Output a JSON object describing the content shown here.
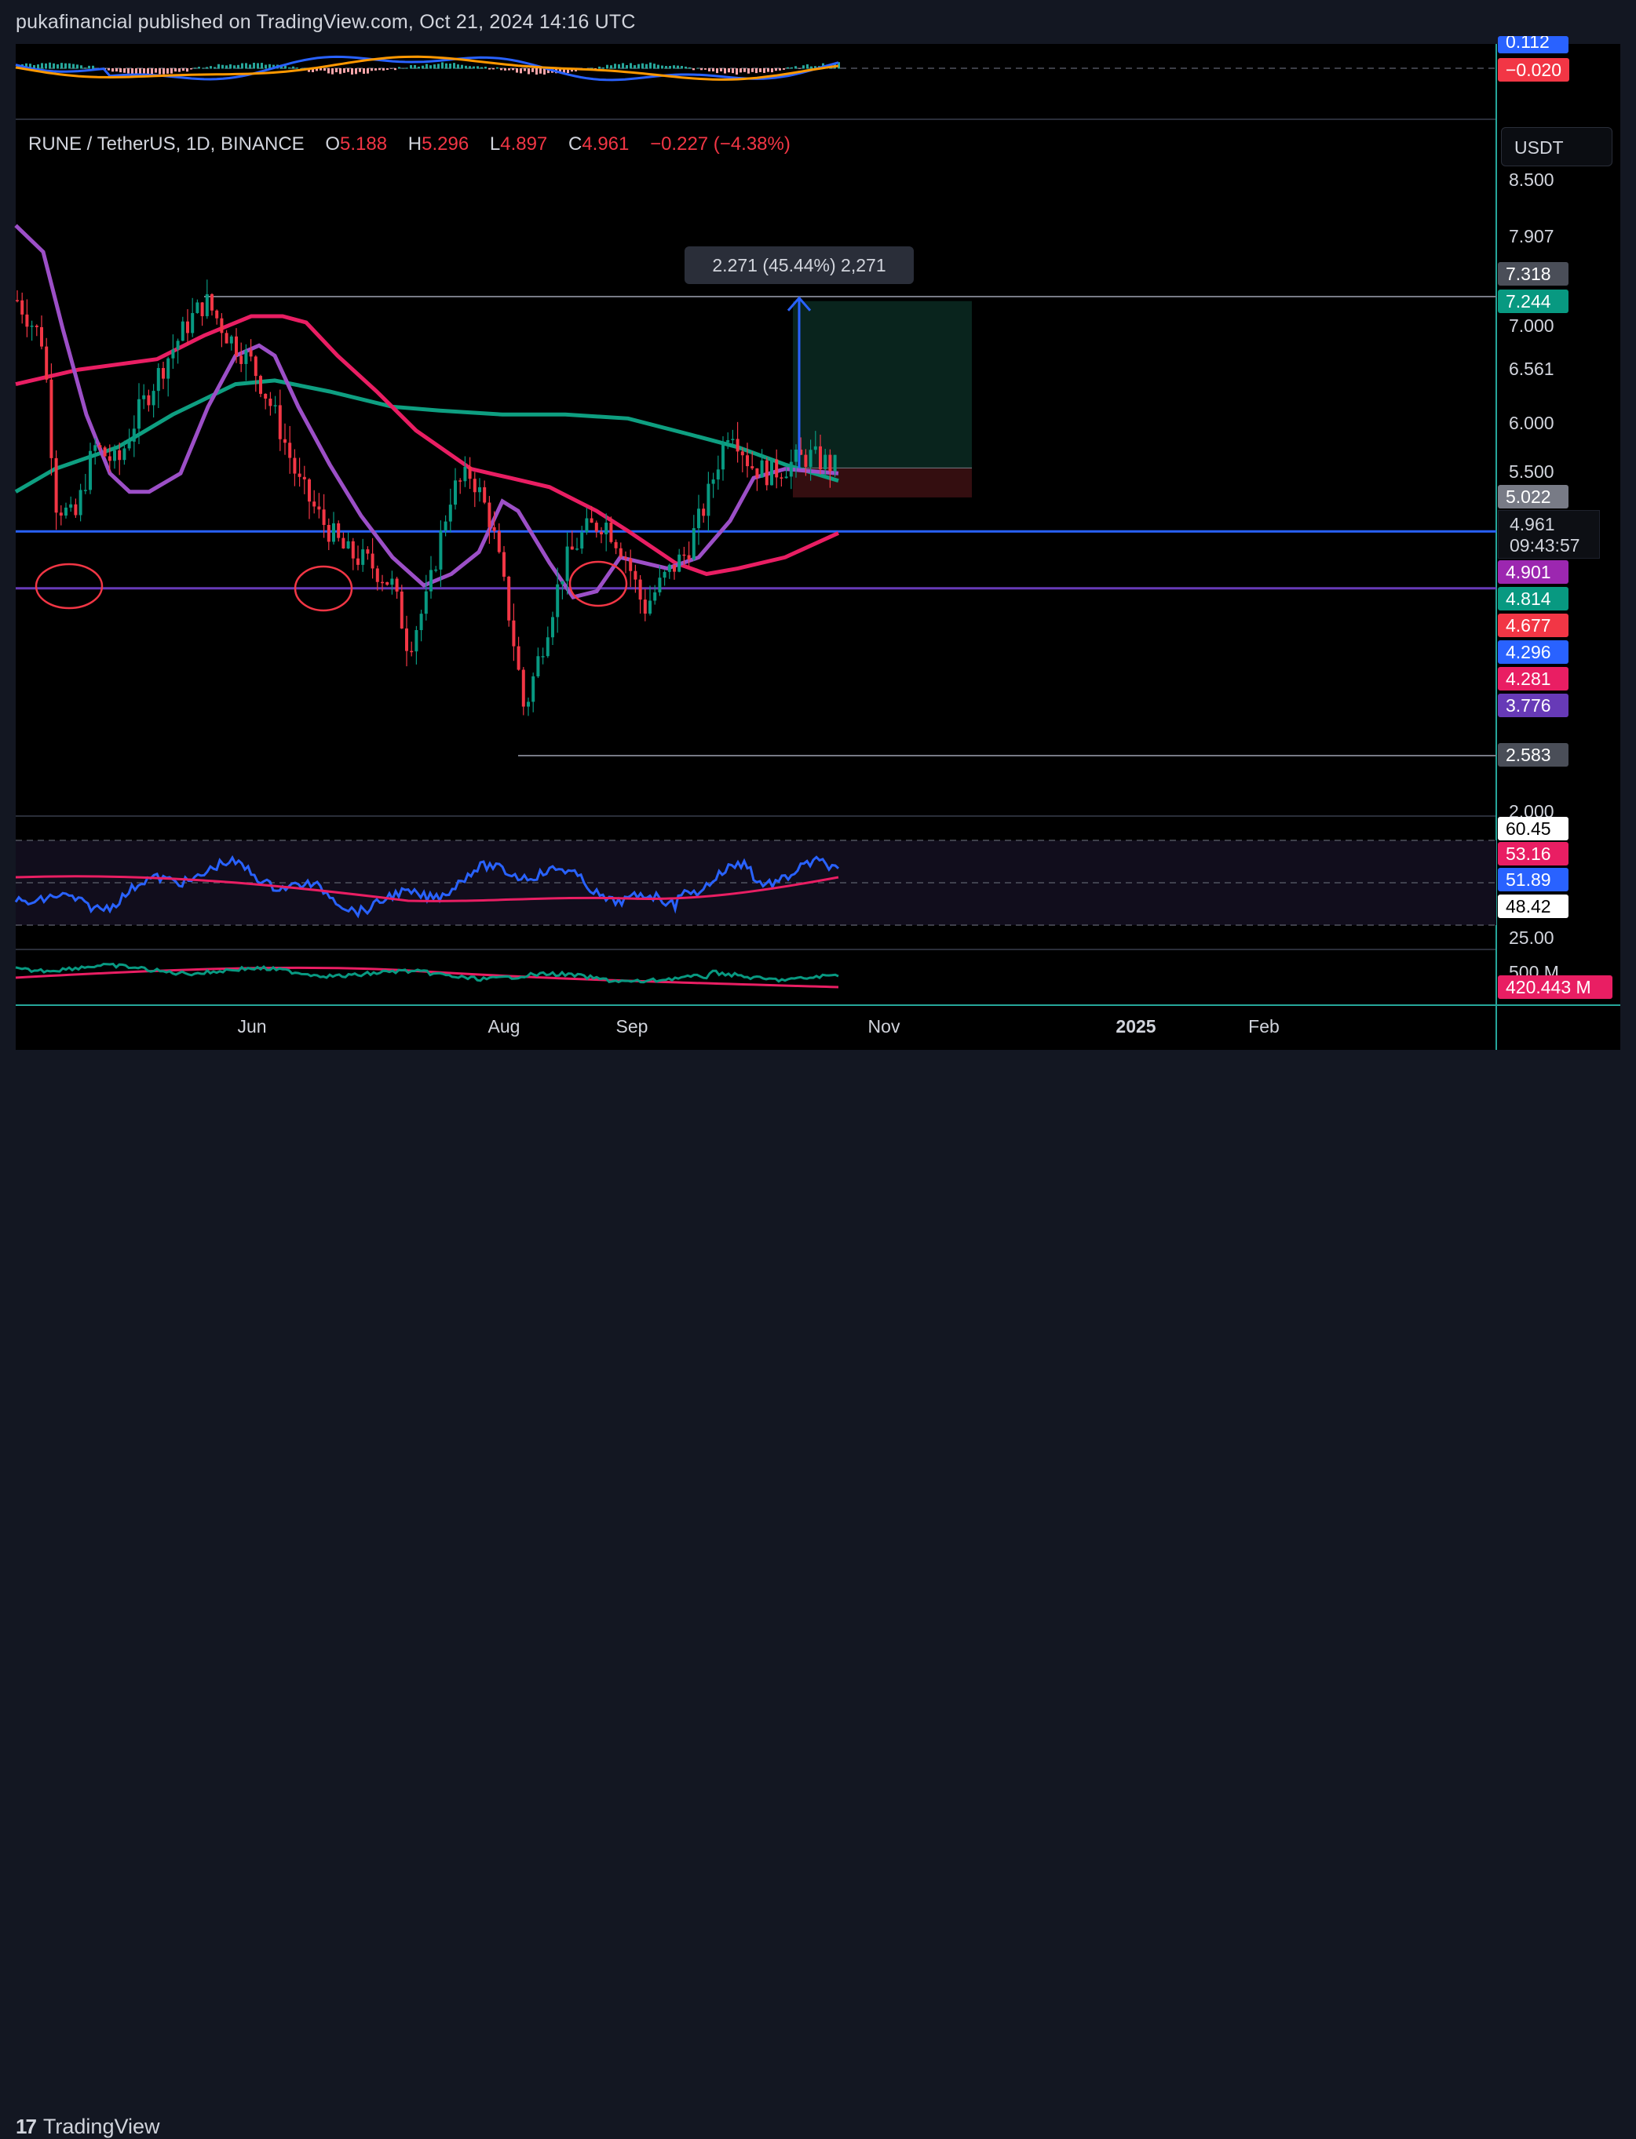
{
  "header": {
    "publisher_line": "pukafinancial published on TradingView.com, Oct 21, 2024 14:16 UTC"
  },
  "footer": {
    "brand": "TradingView",
    "brand_mark": "17"
  },
  "legend": {
    "symbol": "RUNE / TetherUS, 1D, BINANCE",
    "o_label": "O",
    "o_value": "5.188",
    "h_label": "H",
    "h_value": "5.296",
    "l_label": "L",
    "l_value": "4.897",
    "c_label": "C",
    "c_value": "4.961",
    "change": "−0.227 (−4.38%)"
  },
  "currency_button": "USDT",
  "measure_tooltip": "2.271 (45.44%) 2,271",
  "countdown": {
    "price": "4.961",
    "time": "09:43:57"
  },
  "colors": {
    "background": "#000000",
    "candle_up": "#089981",
    "candle_down": "#f23645",
    "ma_purple": "#9c4fc7",
    "ma_red": "#e91e63",
    "ma_green": "#0e9f81",
    "support_blue": "#2962ff",
    "support_purple": "#673ab7",
    "rsi_line": "#2962ff",
    "rsi_ma": "#e91e63",
    "macd_line": "#2962ff",
    "signal_line": "#ff9800"
  },
  "chart_data": [
    {
      "type": "candlestick",
      "symbol": "RUNE / TetherUS",
      "interval": "1D",
      "exchange": "BINANCE",
      "x_ticks": [
        "Jun",
        "Aug",
        "Sep",
        "Nov",
        "2025",
        "Feb"
      ],
      "y_ticks": [
        "8.500",
        "7.907",
        "7.000",
        "6.561",
        "6.000",
        "5.500",
        "2.000"
      ],
      "y_scale": "log",
      "last_ohlc": {
        "open": 5.188,
        "high": 5.296,
        "low": 4.897,
        "close": 4.961,
        "change": -0.227,
        "change_pct": -4.38
      },
      "price_tags": [
        {
          "value": "7.318",
          "color": "#4a4e58"
        },
        {
          "value": "7.244",
          "color": "#089981"
        },
        {
          "value": "5.022",
          "color": "#787b86"
        },
        {
          "value": "4.901",
          "color": "#9c27b0"
        },
        {
          "value": "4.814",
          "color": "#089981"
        },
        {
          "value": "4.677",
          "color": "#f23645"
        },
        {
          "value": "4.296",
          "color": "#2962ff"
        },
        {
          "value": "4.281",
          "color": "#e91e63"
        },
        {
          "value": "3.776",
          "color": "#673ab7"
        },
        {
          "value": "2.583",
          "color": "#4a4e58"
        }
      ],
      "horizontal_lines": [
        {
          "price": 7.318,
          "color": "#787b86"
        },
        {
          "price": 4.296,
          "color": "#2962ff"
        },
        {
          "price": 3.776,
          "color": "#673ab7"
        },
        {
          "price": 2.583,
          "color": "#787b86"
        }
      ],
      "position_tool": {
        "entry": 4.961,
        "target": 7.244,
        "stop": 4.64
      },
      "measure": {
        "change": 2.271,
        "change_pct": 45.44,
        "ticks": "2,271"
      }
    },
    {
      "type": "line",
      "name": "RSI",
      "tags": [
        {
          "value": "60.45",
          "color": "#ffffff",
          "text_color": "#000000"
        },
        {
          "value": "53.16",
          "color": "#e91e63"
        },
        {
          "value": "51.89",
          "color": "#2962ff"
        },
        {
          "value": "48.42",
          "color": "#ffffff",
          "text_color": "#000000"
        }
      ],
      "y_ticks": [
        "25.00"
      ]
    },
    {
      "type": "line",
      "name": "Volume",
      "tags": [
        {
          "value": "420.443 M",
          "color": "#e91e63"
        }
      ],
      "y_ticks": [
        "500 M"
      ]
    },
    {
      "type": "line",
      "name": "MACD",
      "tags": [
        {
          "value": "0.112",
          "color": "#2962ff"
        },
        {
          "value": "−0.020",
          "color": "#f23645"
        }
      ]
    }
  ]
}
